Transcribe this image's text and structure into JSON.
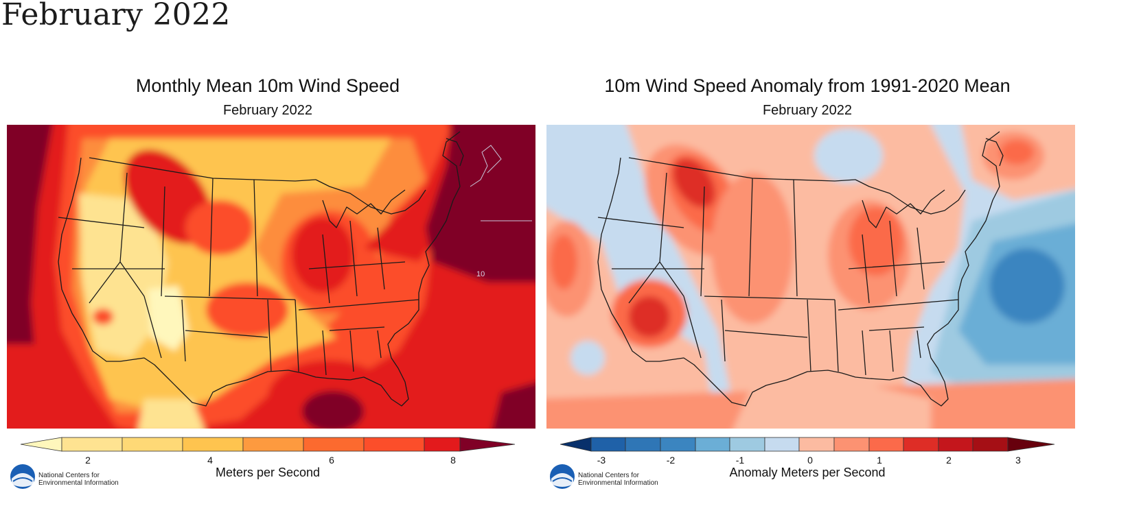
{
  "page_title": "February 2022",
  "panels": [
    {
      "title": "Monthly Mean 10m Wind Speed",
      "subtitle": "February 2022",
      "units_label": "Meters per Second",
      "colorbar": {
        "ticks": [
          "2",
          "4",
          "6",
          "8"
        ],
        "tick_values": [
          2,
          4,
          6,
          8
        ],
        "range": [
          1,
          9
        ],
        "colors": [
          "#fff7bc",
          "#fee391",
          "#fec44f",
          "#feb24c",
          "#fd9a3f",
          "#fd8d3c",
          "#fc4e2a",
          "#e31a1c",
          "#bd0026",
          "#800026"
        ],
        "contour_label": "10"
      },
      "org": {
        "line1": "National Centers for",
        "line2": "Environmental Information"
      }
    },
    {
      "title": "10m Wind Speed Anomaly from 1991-2020 Mean",
      "subtitle": "February 2022",
      "units_label": "Anomaly Meters per Second",
      "colorbar": {
        "ticks": [
          "-3",
          "-2",
          "-1",
          "0",
          "1",
          "2",
          "3"
        ],
        "tick_values": [
          -3,
          -2,
          -1,
          0,
          1,
          2,
          3
        ],
        "range": [
          -3.5,
          3.5
        ],
        "colors": [
          "#08306b",
          "#1f61a8",
          "#3b85c0",
          "#6baed6",
          "#9ecae1",
          "#c6dbef",
          "#fcbba1",
          "#fc9272",
          "#fb6a4a",
          "#de2d26",
          "#c4161c",
          "#a50f15",
          "#67000d"
        ]
      },
      "org": {
        "line1": "National Centers for",
        "line2": "Environmental Information"
      }
    }
  ]
}
